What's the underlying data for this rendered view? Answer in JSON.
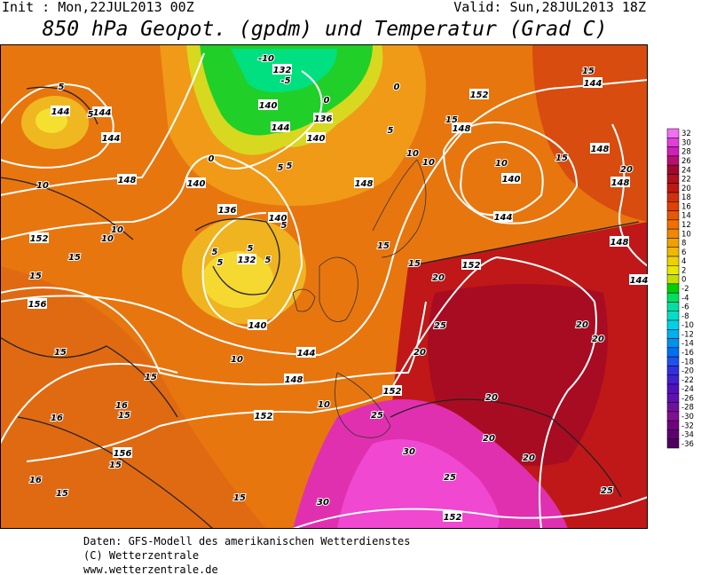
{
  "header": {
    "init": "Init : Mon,22JUL2013 00Z",
    "valid": "Valid: Sun,28JUL2013 18Z",
    "title": "850 hPa Geopot. (gpdm) und Temperatur (Grad C)"
  },
  "map": {
    "geopotential_labels": [
      144,
      144,
      144,
      132,
      140,
      144,
      140,
      136,
      140,
      136,
      140,
      132,
      140,
      144,
      148,
      152,
      156,
      156,
      152,
      148,
      148,
      152,
      152,
      152,
      148,
      144,
      140,
      148,
      148,
      144,
      148,
      144,
      152
    ],
    "temperature_labels": [
      -10,
      -5,
      0,
      0,
      5,
      5,
      5,
      5,
      5,
      0,
      10,
      10,
      10,
      10,
      10,
      10,
      15,
      15,
      15,
      15,
      15,
      15,
      20,
      15,
      20,
      25,
      20,
      15,
      15,
      10,
      16,
      16,
      15,
      15,
      16,
      15,
      15,
      10,
      25,
      30,
      25,
      30,
      20,
      20,
      20,
      20,
      20,
      25,
      5,
      5,
      5,
      5,
      5
    ]
  },
  "colorbar": {
    "levels": [
      32,
      30,
      28,
      26,
      24,
      22,
      20,
      18,
      16,
      14,
      12,
      10,
      8,
      6,
      4,
      2,
      0,
      -2,
      -4,
      -6,
      -8,
      -10,
      -12,
      -14,
      -16,
      -18,
      -20,
      -22,
      -24,
      -26,
      -28,
      -30,
      -32,
      -34,
      -36
    ],
    "colors": [
      "#f070f0",
      "#e040d8",
      "#d020b8",
      "#b81070",
      "#a00830",
      "#b01020",
      "#c01810",
      "#d03010",
      "#e04000",
      "#e85800",
      "#f07000",
      "#f08800",
      "#f0a000",
      "#f0b800",
      "#f0d000",
      "#e8e800",
      "#c0e000",
      "#00d000",
      "#00e060",
      "#00e0a0",
      "#00e0c8",
      "#00d0e8",
      "#00b0f0",
      "#0090f0",
      "#0070f0",
      "#2050f0",
      "#3030e0",
      "#4020d0",
      "#5010c0",
      "#6010b0",
      "#7010a0",
      "#801090",
      "#700080",
      "#600070",
      "#500060"
    ]
  },
  "footer": {
    "lines": [
      "Daten: GFS-Modell des amerikanischen Wetterdienstes",
      "(C) Wetterzentrale",
      "www.wetterzentrale.de"
    ]
  }
}
